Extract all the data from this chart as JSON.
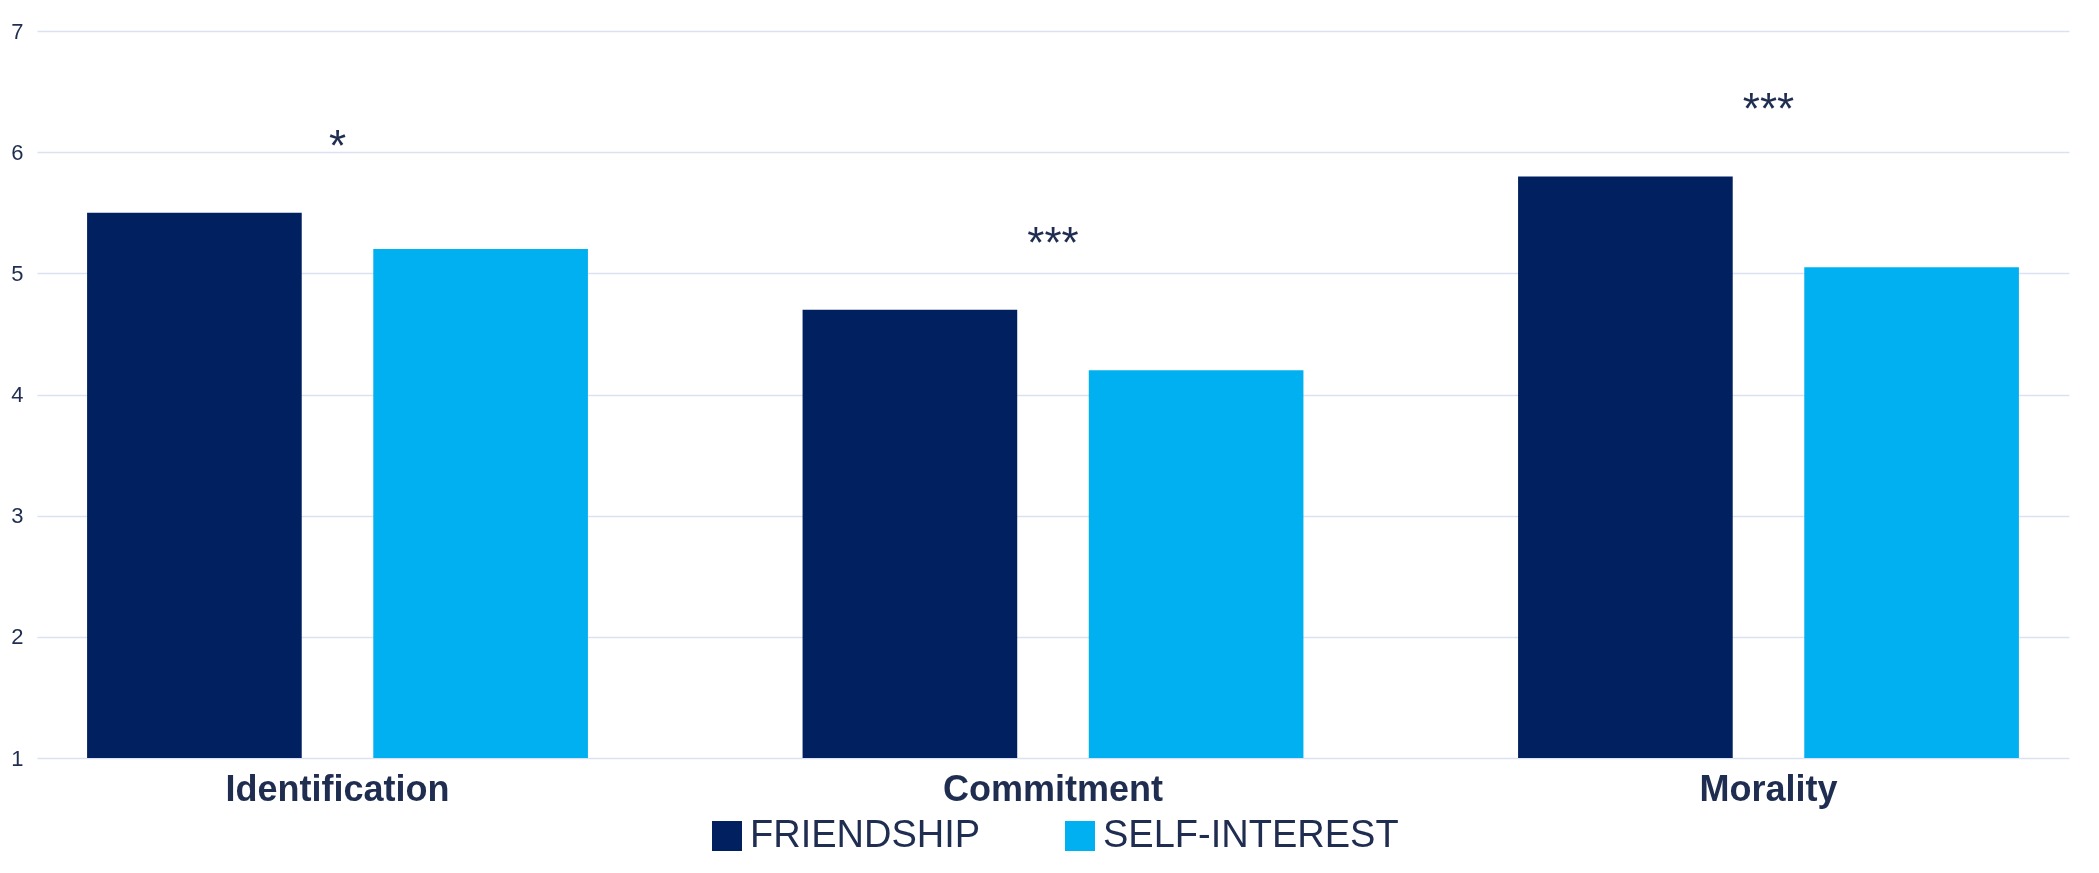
{
  "chart_data": {
    "type": "bar",
    "categories": [
      "Identification",
      "Commitment",
      "Morality"
    ],
    "series": [
      {
        "name": "FRIENDSHIP",
        "color": "#002060",
        "values": [
          5.5,
          4.7,
          5.8
        ]
      },
      {
        "name": "SELF-INTEREST",
        "color": "#00b0f0",
        "values": [
          5.2,
          4.2,
          5.05
        ]
      }
    ],
    "ylim": [
      1,
      7
    ],
    "yticks": [
      1,
      2,
      3,
      4,
      5,
      6,
      7
    ],
    "grid": "y",
    "legend": "bottom",
    "annotations": [
      "*",
      "***",
      "***"
    ]
  }
}
